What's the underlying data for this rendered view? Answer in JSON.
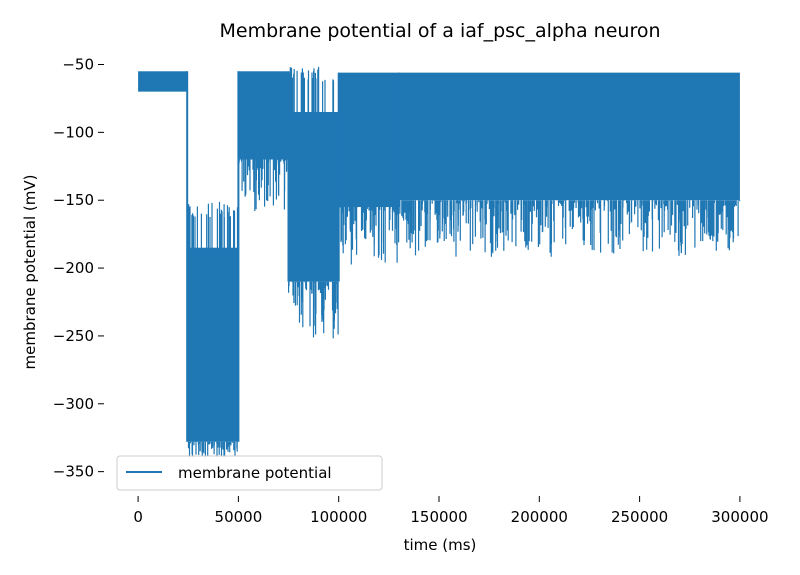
{
  "chart_data": {
    "type": "line",
    "title": "Membrane potential of a iaf_psc_alpha neuron",
    "xlabel": "time (ms)",
    "ylabel": "membrane potential (mV)",
    "xlim": [
      -15000,
      315000
    ],
    "ylim": [
      -365,
      -43
    ],
    "xticks": [
      0,
      50000,
      100000,
      150000,
      200000,
      250000,
      300000
    ],
    "xtick_labels": [
      "0",
      "50000",
      "100000",
      "150000",
      "200000",
      "250000",
      "300000"
    ],
    "yticks": [
      -50,
      -100,
      -150,
      -200,
      -250,
      -300,
      -350
    ],
    "ytick_labels": [
      "−50",
      "−100",
      "−150",
      "−200",
      "−250",
      "−300",
      "−350"
    ],
    "grid": false,
    "legend_position": "lower-left",
    "color": "#1f77b4",
    "series": [
      {
        "name": "membrane potential",
        "segments": [
          {
            "x_start": 0,
            "x_end": 24500,
            "top": -55,
            "bottom": -70,
            "min_dip": -70
          },
          {
            "x_start": 24500,
            "x_end": 50000,
            "top": -185,
            "bottom": -328,
            "min_dip": -340
          },
          {
            "x_start": 50000,
            "x_end": 75000,
            "top": -55,
            "bottom": -120,
            "min_dip": -160
          },
          {
            "x_start": 75000,
            "x_end": 100000,
            "top": -85,
            "bottom": -210,
            "min_dip": -252
          },
          {
            "x_start": 100000,
            "x_end": 130000,
            "top": -56,
            "bottom": -155,
            "min_dip": -200
          },
          {
            "x_start": 130000,
            "x_end": 300000,
            "top": -56,
            "bottom": -150,
            "min_dip": -192
          }
        ]
      }
    ]
  }
}
